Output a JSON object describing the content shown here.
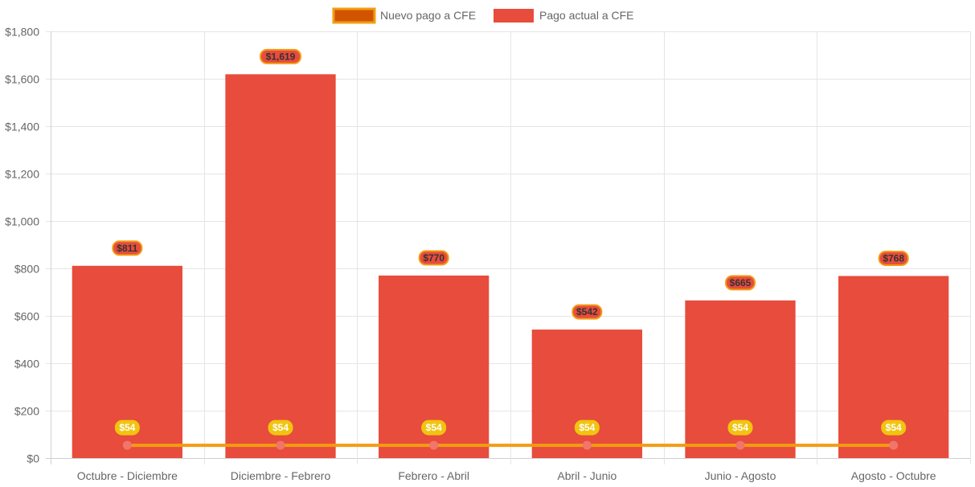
{
  "chart_data": {
    "type": "bar",
    "title": "",
    "xlabel": "",
    "ylabel": "",
    "ylim": [
      0,
      1800
    ],
    "y_ticks": [
      0,
      200,
      400,
      600,
      800,
      1000,
      1200,
      1400,
      1600,
      1800
    ],
    "y_tick_labels": [
      "$0",
      "$200",
      "$400",
      "$600",
      "$800",
      "$1,000",
      "$1,200",
      "$1,400",
      "$1,600",
      "$1,800"
    ],
    "categories": [
      "Octubre - Diciembre",
      "Diciembre - Febrero",
      "Febrero - Abril",
      "Abril - Junio",
      "Junio - Agosto",
      "Agosto - Octubre"
    ],
    "grid": true,
    "legend_position": "top-center",
    "series": [
      {
        "name": "Nuevo pago a CFE",
        "type": "line",
        "values": [
          54,
          54,
          54,
          54,
          54,
          54
        ],
        "labels": [
          "$54",
          "$54",
          "$54",
          "$54",
          "$54",
          "$54"
        ],
        "color": "#f39c12",
        "legend_fill": "#d35400",
        "point_color": "#f1756a",
        "label_bg": "#f1c40f",
        "label_text": "#ffffff"
      },
      {
        "name": "Pago actual a CFE",
        "type": "bar",
        "values": [
          811,
          1619,
          770,
          542,
          665,
          768
        ],
        "labels": [
          "$811",
          "$1,619",
          "$770",
          "$542",
          "$665",
          "$768"
        ],
        "color": "#e74c3c",
        "label_border": "#f39c12",
        "label_text": "#333333"
      }
    ]
  }
}
